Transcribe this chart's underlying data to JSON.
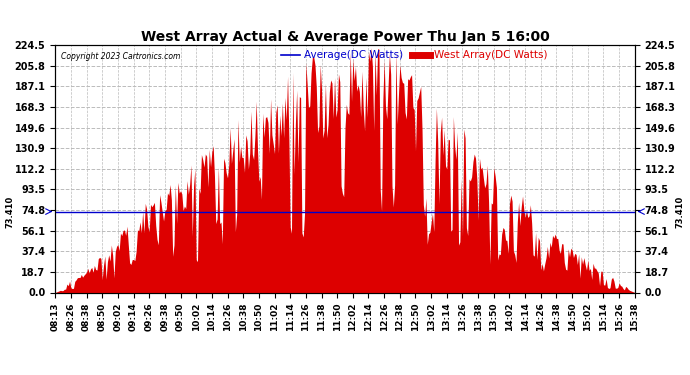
{
  "title": "West Array Actual & Average Power Thu Jan 5 16:00",
  "copyright": "Copyright 2023 Cartronics.com",
  "average_value": 73.41,
  "ylim": [
    0.0,
    224.5
  ],
  "yticks": [
    0.0,
    18.7,
    37.4,
    56.1,
    74.8,
    93.5,
    112.2,
    130.9,
    149.6,
    168.3,
    187.1,
    205.8,
    224.5
  ],
  "average_label": "Average(DC Watts)",
  "west_label": "West Array(DC Watts)",
  "avg_color": "#0000cc",
  "west_color": "#dd0000",
  "background_color": "#ffffff",
  "grid_color": "#bbbbbb",
  "tick_labels": [
    "08:13",
    "08:26",
    "08:38",
    "08:50",
    "09:02",
    "09:14",
    "09:26",
    "09:38",
    "09:50",
    "10:02",
    "10:14",
    "10:26",
    "10:38",
    "10:50",
    "11:02",
    "11:14",
    "11:26",
    "11:38",
    "11:50",
    "12:02",
    "12:14",
    "12:26",
    "12:38",
    "12:50",
    "13:02",
    "13:14",
    "13:26",
    "13:38",
    "13:50",
    "14:02",
    "14:14",
    "14:26",
    "14:38",
    "14:50",
    "15:02",
    "15:14",
    "15:26",
    "15:38"
  ],
  "avg_annotation": "73.410",
  "legend_fontsize": 7.5,
  "title_fontsize": 10,
  "tick_fontsize": 6.5,
  "ytick_fontsize": 7
}
